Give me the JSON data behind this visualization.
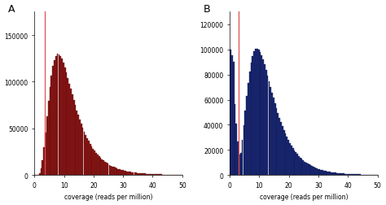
{
  "panel_A": {
    "label": "A",
    "bar_color": "#8B1A1A",
    "bar_edge_color": "#5A0000",
    "red_line_x": 3.5,
    "xlim": [
      0,
      50
    ],
    "ylim": [
      0,
      175000
    ],
    "yticks": [
      0,
      50000,
      100000,
      150000
    ],
    "xticks": [
      0,
      10,
      20,
      30,
      40,
      50
    ],
    "xlabel": "coverage (reads per million)",
    "mu": 2.35,
    "sigma": 0.52,
    "scale": 1550000,
    "n_bins": 100
  },
  "panel_B": {
    "label": "B",
    "bar_color": "#1C2B7A",
    "bar_edge_color": "#0A0F40",
    "red_line_x": 3.0,
    "xlim": [
      0,
      50
    ],
    "ylim": [
      0,
      130000
    ],
    "yticks": [
      0,
      20000,
      40000,
      60000,
      80000,
      100000,
      120000
    ],
    "xticks": [
      0,
      10,
      20,
      30,
      40,
      50
    ],
    "xlabel": "coverage (reads per million)",
    "mu": 2.45,
    "sigma": 0.48,
    "scale": 1250000,
    "spike_x": 1.0,
    "spike_height": 100000,
    "spike_dip": 65000,
    "n_bins": 100
  },
  "figsize": [
    4.74,
    2.53
  ],
  "dpi": 100
}
